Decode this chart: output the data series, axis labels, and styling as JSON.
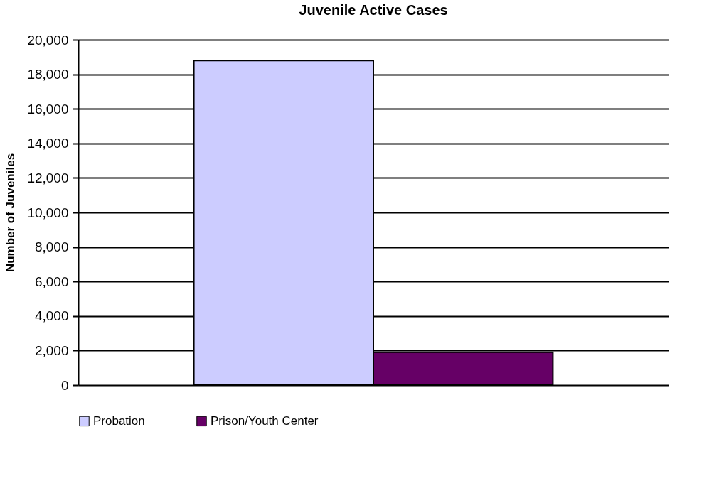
{
  "chart_data": {
    "type": "bar",
    "title": "Juvenile Active Cases",
    "ylabel": "Number of Juveniles",
    "categories": [
      null
    ],
    "series": [
      {
        "name": "Probation",
        "color": "#ccccff",
        "values": [
          18800
        ]
      },
      {
        "name": "Prison/Youth Center",
        "color": "#660066",
        "values": [
          1900
        ]
      }
    ],
    "ylim": [
      0,
      20000
    ],
    "yticks": [
      {
        "value": 0,
        "label": "0"
      },
      {
        "value": 2000,
        "label": "2,000"
      },
      {
        "value": 4000,
        "label": "4,000"
      },
      {
        "value": 6000,
        "label": "6,000"
      },
      {
        "value": 8000,
        "label": "8,000"
      },
      {
        "value": 10000,
        "label": "10,000"
      },
      {
        "value": 12000,
        "label": "12,000"
      },
      {
        "value": 14000,
        "label": "14,000"
      },
      {
        "value": 16000,
        "label": "16,000"
      },
      {
        "value": 18000,
        "label": "18,000"
      },
      {
        "value": 20000,
        "label": "20,000"
      }
    ],
    "grid": "y",
    "legend": "bottom"
  }
}
